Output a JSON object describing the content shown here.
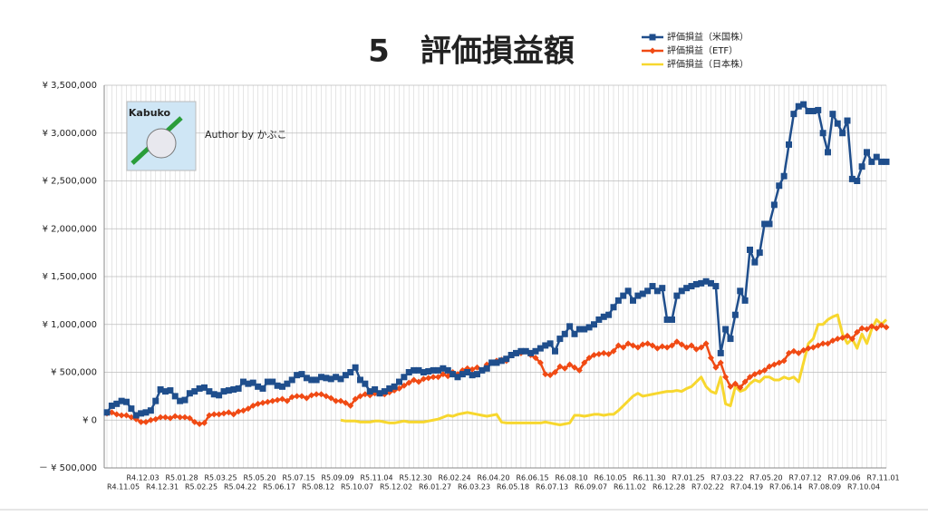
{
  "chart_data": {
    "type": "line",
    "title": "5　評価損益額",
    "annotations": [
      "Kabuko",
      "Author by かぶこ"
    ],
    "legend_position": "top-right",
    "grid": true,
    "ylim": [
      -500000,
      3500000
    ],
    "yticks": [
      {
        "value": -500000,
        "label": "－ ¥ 500,000"
      },
      {
        "value": 0,
        "label": "¥ 0"
      },
      {
        "value": 500000,
        "label": "¥ 500,000"
      },
      {
        "value": 1000000,
        "label": "¥ 1,000,000"
      },
      {
        "value": 1500000,
        "label": "¥ 1,500,000"
      },
      {
        "value": 2000000,
        "label": "¥ 2,000,000"
      },
      {
        "value": 2500000,
        "label": "¥ 2,500,000"
      },
      {
        "value": 3000000,
        "label": "¥ 3,000,000"
      },
      {
        "value": 3500000,
        "label": "¥ 3,500,000"
      }
    ],
    "categories": [
      "R4.11.05",
      null,
      null,
      null,
      "R4.12.03",
      null,
      null,
      null,
      "R4.12.31",
      null,
      null,
      null,
      "R5.01.28",
      null,
      null,
      null,
      "R5.02.25",
      null,
      null,
      null,
      "R5.03.25",
      null,
      null,
      null,
      "R5.04.22",
      null,
      null,
      null,
      "R5.05.20",
      null,
      null,
      null,
      "R5.06.17",
      null,
      null,
      null,
      "R5.07.15",
      null,
      null,
      null,
      "R5.08.12",
      null,
      null,
      null,
      "R5.09.09",
      null,
      null,
      null,
      "R5.10.07",
      null,
      null,
      null,
      "R5.11.04",
      null,
      null,
      null,
      "R5.12.02",
      null,
      null,
      null,
      "R5.12.30",
      null,
      null,
      null,
      "R6.01.27",
      null,
      null,
      null,
      "R6.02.24",
      null,
      null,
      null,
      "R6.03.23",
      null,
      null,
      null,
      "R6.04.20",
      null,
      null,
      null,
      "R6.05.18",
      null,
      null,
      null,
      "R6.06.15",
      null,
      null,
      null,
      "R6.07.13",
      null,
      null,
      null,
      "R6.08.10",
      null,
      null,
      null,
      "R6.09.07",
      null,
      null,
      null,
      "R6.10.05",
      null,
      null,
      null,
      "R6.11.02",
      null,
      null,
      null,
      "R6.11.30",
      null,
      null,
      null,
      "R6.12.28",
      null,
      null,
      null,
      "R7.01.25",
      null,
      null,
      null,
      "R7.02.22",
      null,
      null,
      null,
      "R7.03.22",
      null,
      null,
      null,
      "R7.04.19",
      null,
      null,
      null,
      "R7.05.20",
      null,
      null,
      null,
      "R7.06.14",
      null,
      null,
      null,
      "R7.07.12",
      null,
      null,
      null,
      "R7.08.09",
      null,
      null,
      null,
      "R7.09.06",
      null,
      null,
      null,
      "R7.10.04",
      null,
      null,
      null,
      "R7.11.01",
      null,
      null,
      null,
      null
    ],
    "series": [
      {
        "name": "評価損益（米国株）",
        "color": "#1f4e8c",
        "marker": "square",
        "values": [
          80000,
          150000,
          170000,
          200000,
          190000,
          120000,
          50000,
          70000,
          80000,
          100000,
          200000,
          320000,
          300000,
          310000,
          250000,
          200000,
          210000,
          280000,
          300000,
          330000,
          340000,
          300000,
          270000,
          260000,
          300000,
          310000,
          320000,
          330000,
          400000,
          380000,
          390000,
          350000,
          330000,
          400000,
          400000,
          360000,
          350000,
          380000,
          420000,
          470000,
          480000,
          440000,
          420000,
          420000,
          450000,
          440000,
          430000,
          450000,
          430000,
          470000,
          500000,
          550000,
          420000,
          380000,
          300000,
          320000,
          280000,
          300000,
          330000,
          350000,
          400000,
          450000,
          500000,
          520000,
          520000,
          500000,
          510000,
          520000,
          520000,
          540000,
          520000,
          480000,
          450000,
          480000,
          500000,
          470000,
          480000,
          520000,
          540000,
          600000,
          600000,
          620000,
          640000,
          680000,
          700000,
          720000,
          720000,
          700000,
          720000,
          750000,
          780000,
          800000,
          720000,
          850000,
          900000,
          980000,
          900000,
          950000,
          950000,
          970000,
          1000000,
          1050000,
          1080000,
          1100000,
          1180000,
          1250000,
          1300000,
          1350000,
          1250000,
          1300000,
          1320000,
          1350000,
          1400000,
          1350000,
          1380000,
          1050000,
          1050000,
          1300000,
          1350000,
          1380000,
          1400000,
          1420000,
          1430000,
          1450000,
          1430000,
          1400000,
          700000,
          950000,
          850000,
          1100000,
          1350000,
          1250000,
          1780000,
          1650000,
          1750000,
          2050000,
          2050000,
          2250000,
          2450000,
          2550000,
          2880000,
          3200000,
          3280000,
          3300000,
          3230000,
          3230000,
          3240000,
          3000000,
          2800000,
          3200000,
          3100000,
          3000000,
          3130000,
          2520000,
          2500000,
          2650000,
          2800000,
          2700000,
          2750000,
          2700000,
          2700000
        ]
      },
      {
        "name": "評価損益（ETF）",
        "color": "#f04a14",
        "marker": "diamond",
        "values": [
          70000,
          80000,
          60000,
          50000,
          50000,
          30000,
          10000,
          -20000,
          -20000,
          0,
          10000,
          30000,
          30000,
          20000,
          40000,
          30000,
          30000,
          20000,
          -20000,
          -40000,
          -30000,
          50000,
          60000,
          60000,
          70000,
          80000,
          60000,
          90000,
          100000,
          120000,
          150000,
          170000,
          180000,
          190000,
          200000,
          210000,
          220000,
          200000,
          240000,
          250000,
          250000,
          230000,
          260000,
          270000,
          270000,
          250000,
          230000,
          200000,
          200000,
          180000,
          150000,
          220000,
          250000,
          270000,
          260000,
          280000,
          280000,
          270000,
          290000,
          310000,
          330000,
          360000,
          390000,
          420000,
          400000,
          430000,
          440000,
          450000,
          450000,
          480000,
          460000,
          500000,
          480000,
          520000,
          540000,
          530000,
          550000,
          520000,
          580000,
          600000,
          620000,
          630000,
          620000,
          680000,
          700000,
          700000,
          720000,
          680000,
          650000,
          600000,
          480000,
          470000,
          500000,
          560000,
          540000,
          580000,
          550000,
          520000,
          600000,
          650000,
          680000,
          690000,
          700000,
          690000,
          720000,
          780000,
          760000,
          800000,
          780000,
          760000,
          790000,
          800000,
          780000,
          750000,
          770000,
          760000,
          780000,
          820000,
          790000,
          760000,
          780000,
          740000,
          760000,
          800000,
          650000,
          550000,
          600000,
          450000,
          350000,
          380000,
          340000,
          400000,
          450000,
          480000,
          500000,
          520000,
          560000,
          580000,
          600000,
          620000,
          700000,
          720000,
          700000,
          730000,
          750000,
          760000,
          780000,
          800000,
          800000,
          830000,
          850000,
          860000,
          880000,
          850000,
          920000,
          960000,
          950000,
          980000,
          960000,
          990000,
          970000
        ]
      },
      {
        "name": "評価損益（日本株）",
        "color": "#f7d72e",
        "marker": "none",
        "values": [
          null,
          null,
          null,
          null,
          null,
          null,
          null,
          null,
          null,
          null,
          null,
          null,
          null,
          null,
          null,
          null,
          null,
          null,
          null,
          null,
          null,
          null,
          null,
          null,
          null,
          null,
          null,
          null,
          null,
          null,
          null,
          null,
          null,
          null,
          null,
          null,
          null,
          null,
          null,
          null,
          null,
          null,
          null,
          null,
          null,
          null,
          null,
          null,
          0,
          -10000,
          -10000,
          -10000,
          -20000,
          -20000,
          -20000,
          -10000,
          -10000,
          -20000,
          -30000,
          -30000,
          -20000,
          -10000,
          -20000,
          -20000,
          -20000,
          -20000,
          -10000,
          0,
          10000,
          30000,
          50000,
          40000,
          60000,
          70000,
          80000,
          70000,
          60000,
          50000,
          40000,
          50000,
          60000,
          -20000,
          -30000,
          -30000,
          -30000,
          -30000,
          -30000,
          -30000,
          -30000,
          -30000,
          -20000,
          -30000,
          -40000,
          -50000,
          -40000,
          -30000,
          50000,
          50000,
          40000,
          50000,
          60000,
          60000,
          50000,
          60000,
          60000,
          100000,
          150000,
          200000,
          250000,
          280000,
          250000,
          260000,
          270000,
          280000,
          290000,
          300000,
          300000,
          310000,
          300000,
          330000,
          350000,
          400000,
          450000,
          350000,
          300000,
          280000,
          450000,
          170000,
          150000,
          350000,
          300000,
          320000,
          380000,
          420000,
          400000,
          450000,
          450000,
          420000,
          420000,
          450000,
          430000,
          450000,
          400000,
          600000,
          800000,
          850000,
          1000000,
          1000000,
          1050000,
          1080000,
          1100000,
          900000,
          800000,
          850000,
          750000,
          900000,
          800000,
          950000,
          1050000,
          1000000,
          1050000
        ]
      }
    ]
  }
}
